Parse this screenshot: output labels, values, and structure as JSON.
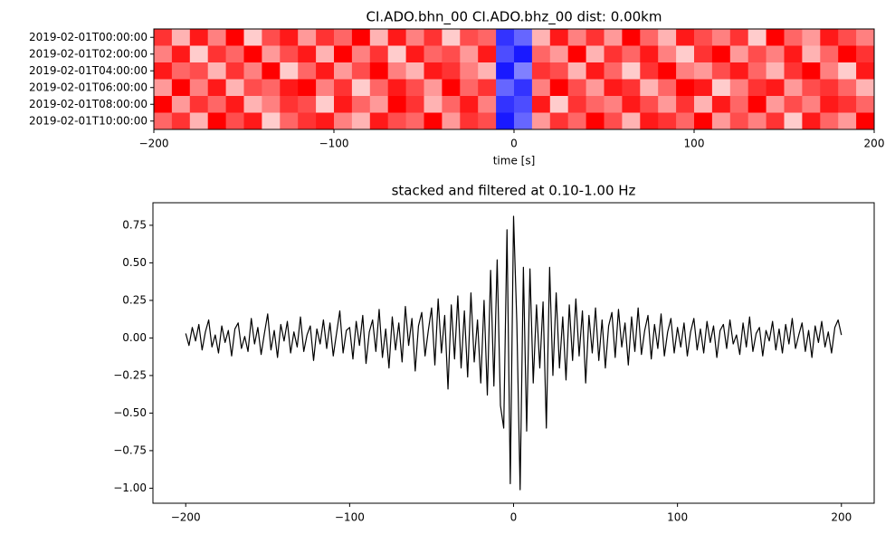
{
  "chart_data": [
    {
      "type": "heatmap",
      "title": "CI.ADO.bhn_00 CI.ADO.bhz_00  dist: 0.00km",
      "xlabel": "time [s]",
      "xlim": [
        -200,
        200
      ],
      "xticks": [
        {
          "value": -200,
          "label": "−200"
        },
        {
          "value": -100,
          "label": "−100"
        },
        0,
        100,
        200
      ],
      "rows": [
        "2019-02-01T00:00:00",
        "2019-02-01T02:00:00",
        "2019-02-01T04:00:00",
        "2019-02-01T06:00:00",
        "2019-02-01T08:00:00",
        "2019-02-01T10:00:00"
      ],
      "z": [
        [
          0.8,
          0.3,
          0.9,
          0.5,
          1,
          0.2,
          0.7,
          0.9,
          0.4,
          0.8,
          0.6,
          1,
          0.3,
          0.9,
          0.5,
          0.8,
          0.2,
          0.7,
          0.6,
          -0.8,
          -0.6,
          0.3,
          0.9,
          0.5,
          0.8,
          0.4,
          1,
          0.6,
          0.3,
          0.9,
          0.7,
          0.5,
          0.8,
          0.2,
          1,
          0.6,
          0.4,
          0.9,
          0.7,
          0.5
        ],
        [
          0.5,
          0.9,
          0.2,
          0.8,
          0.6,
          1,
          0.4,
          0.7,
          0.9,
          0.3,
          1,
          0.5,
          0.8,
          0.2,
          0.9,
          0.6,
          0.7,
          0.4,
          0.9,
          -0.7,
          -0.9,
          0.6,
          0.4,
          1,
          0.3,
          0.8,
          0.6,
          0.9,
          0.5,
          0.2,
          0.8,
          1,
          0.4,
          0.7,
          0.5,
          0.9,
          0.3,
          0.6,
          1,
          0.8
        ],
        [
          0.9,
          0.6,
          0.7,
          0.3,
          0.8,
          0.5,
          1,
          0.2,
          0.6,
          0.9,
          0.4,
          0.7,
          1,
          0.5,
          0.3,
          0.9,
          0.8,
          0.5,
          0.3,
          -0.9,
          -0.5,
          0.8,
          0.7,
          0.3,
          0.9,
          0.6,
          0.2,
          0.8,
          1,
          0.5,
          0.4,
          0.7,
          0.9,
          0.6,
          0.3,
          0.8,
          1,
          0.5,
          0.2,
          0.9
        ],
        [
          0.4,
          1,
          0.5,
          0.9,
          0.3,
          0.7,
          0.6,
          0.9,
          1,
          0.5,
          0.8,
          0.2,
          0.6,
          0.9,
          0.7,
          0.4,
          1,
          0.6,
          0.8,
          -0.6,
          -0.8,
          0.5,
          1,
          0.7,
          0.4,
          0.9,
          0.8,
          0.3,
          0.6,
          1,
          0.9,
          0.2,
          0.5,
          0.8,
          0.9,
          0.4,
          0.7,
          0.8,
          0.6,
          0.3
        ],
        [
          1,
          0.4,
          0.8,
          0.6,
          0.9,
          0.3,
          0.5,
          0.8,
          0.7,
          0.2,
          0.9,
          0.6,
          0.4,
          1,
          0.8,
          0.3,
          0.6,
          0.9,
          0.5,
          -0.8,
          -0.7,
          0.9,
          0.2,
          0.8,
          0.6,
          0.5,
          0.9,
          0.7,
          0.4,
          0.8,
          0.3,
          0.9,
          0.6,
          1,
          0.4,
          0.7,
          0.5,
          0.9,
          0.8,
          0.6
        ],
        [
          0.6,
          0.8,
          0.3,
          1,
          0.7,
          0.9,
          0.2,
          0.6,
          0.8,
          0.9,
          0.5,
          0.3,
          0.9,
          0.7,
          0.6,
          1,
          0.4,
          0.8,
          0.7,
          -0.9,
          -0.6,
          0.4,
          0.8,
          0.6,
          1,
          0.7,
          0.3,
          0.9,
          0.8,
          0.6,
          1,
          0.4,
          0.7,
          0.5,
          0.8,
          0.2,
          0.9,
          0.6,
          0.4,
          1
        ]
      ]
    },
    {
      "type": "line",
      "title": "stacked and filtered at 0.10-1.00 Hz",
      "xlim": [
        -220,
        220
      ],
      "ylim": [
        -1.1,
        0.9
      ],
      "xticks": [
        {
          "value": -200,
          "label": "−200"
        },
        {
          "value": -100,
          "label": "−100"
        },
        0,
        100,
        200
      ],
      "yticks": [
        0.75,
        {
          "value": 0.5,
          "label": "0.50"
        },
        0.25,
        {
          "value": 0,
          "label": "0.00"
        },
        {
          "value": -0.25,
          "label": "−0.25"
        },
        {
          "value": -0.5,
          "label": "−0.50"
        },
        {
          "value": -0.75,
          "label": "−0.75"
        },
        {
          "value": -1,
          "label": "−1.00"
        }
      ],
      "x": [
        -200,
        -198,
        -196,
        -194,
        -192,
        -190,
        -188,
        -186,
        -184,
        -182,
        -180,
        -178,
        -176,
        -174,
        -172,
        -170,
        -168,
        -166,
        -164,
        -162,
        -160,
        -158,
        -156,
        -154,
        -152,
        -150,
        -148,
        -146,
        -144,
        -142,
        -140,
        -138,
        -136,
        -134,
        -132,
        -130,
        -128,
        -126,
        -124,
        -122,
        -120,
        -118,
        -116,
        -114,
        -112,
        -110,
        -108,
        -106,
        -104,
        -102,
        -100,
        -98,
        -96,
        -94,
        -92,
        -90,
        -88,
        -86,
        -84,
        -82,
        -80,
        -78,
        -76,
        -74,
        -72,
        -70,
        -68,
        -66,
        -64,
        -62,
        -60,
        -58,
        -56,
        -54,
        -52,
        -50,
        -48,
        -46,
        -44,
        -42,
        -40,
        -38,
        -36,
        -34,
        -32,
        -30,
        -28,
        -26,
        -24,
        -22,
        -20,
        -18,
        -16,
        -14,
        -12,
        -10,
        -8,
        -6,
        -4,
        -2,
        0,
        2,
        4,
        6,
        8,
        10,
        12,
        14,
        16,
        18,
        20,
        22,
        24,
        26,
        28,
        30,
        32,
        34,
        36,
        38,
        40,
        42,
        44,
        46,
        48,
        50,
        52,
        54,
        56,
        58,
        60,
        62,
        64,
        66,
        68,
        70,
        72,
        74,
        76,
        78,
        80,
        82,
        84,
        86,
        88,
        90,
        92,
        94,
        96,
        98,
        100,
        102,
        104,
        106,
        108,
        110,
        112,
        114,
        116,
        118,
        120,
        122,
        124,
        126,
        128,
        130,
        132,
        134,
        136,
        138,
        140,
        142,
        144,
        146,
        148,
        150,
        152,
        154,
        156,
        158,
        160,
        162,
        164,
        166,
        168,
        170,
        172,
        174,
        176,
        178,
        180,
        182,
        184,
        186,
        188,
        190,
        192,
        194,
        196,
        198,
        200
      ],
      "series": [
        {
          "color": "#000000",
          "values": [
            0.03,
            -0.05,
            0.07,
            -0.02,
            0.09,
            -0.08,
            0.04,
            0.12,
            -0.06,
            0.02,
            -0.1,
            0.08,
            -0.03,
            0.05,
            -0.12,
            0.06,
            0.1,
            -0.07,
            0.01,
            -0.09,
            0.13,
            -0.04,
            0.07,
            -0.11,
            0.03,
            0.16,
            -0.08,
            0.05,
            -0.13,
            0.09,
            -0.02,
            0.11,
            -0.1,
            0.04,
            -0.06,
            0.14,
            -0.09,
            0.02,
            0.08,
            -0.15,
            0.06,
            -0.04,
            0.12,
            -0.07,
            0.1,
            -0.12,
            0.03,
            0.18,
            -0.1,
            0.05,
            0.07,
            -0.14,
            0.11,
            -0.05,
            0.15,
            -0.17,
            0.04,
            0.12,
            -0.09,
            0.19,
            -0.13,
            0.06,
            -0.2,
            0.14,
            -0.08,
            0.1,
            -0.16,
            0.21,
            -0.05,
            0.13,
            -0.22,
            0.08,
            0.17,
            -0.12,
            0.05,
            0.2,
            -0.18,
            0.26,
            -0.1,
            0.15,
            -0.34,
            0.22,
            -0.14,
            0.28,
            -0.2,
            0.18,
            -0.26,
            0.3,
            -0.16,
            0.12,
            -0.3,
            0.25,
            -0.38,
            0.45,
            -0.32,
            0.52,
            -0.45,
            -0.6,
            0.72,
            -0.97,
            0.81,
            0.1,
            -1.01,
            0.47,
            -0.62,
            0.46,
            -0.3,
            0.22,
            -0.2,
            0.24,
            -0.6,
            0.47,
            -0.25,
            0.3,
            -0.2,
            0.14,
            -0.28,
            0.22,
            -0.15,
            0.26,
            -0.12,
            0.18,
            -0.3,
            0.15,
            -0.1,
            0.2,
            -0.15,
            0.12,
            -0.2,
            0.08,
            0.17,
            -0.13,
            0.19,
            -0.06,
            0.1,
            -0.18,
            0.14,
            -0.09,
            0.2,
            -0.11,
            0.05,
            0.15,
            -0.14,
            0.09,
            -0.07,
            0.16,
            -0.12,
            0.04,
            0.13,
            -0.1,
            0.07,
            -0.06,
            0.1,
            -0.12,
            0.04,
            0.13,
            -0.08,
            0.06,
            -0.1,
            0.11,
            -0.03,
            0.08,
            -0.13,
            0.05,
            0.09,
            -0.07,
            0.12,
            -0.04,
            0.02,
            -0.11,
            0.1,
            -0.06,
            0.14,
            -0.09,
            0.03,
            0.07,
            -0.12,
            0.05,
            -0.02,
            0.11,
            -0.08,
            0.06,
            -0.1,
            0.09,
            -0.04,
            0.13,
            -0.07,
            0.02,
            0.1,
            -0.09,
            0.05,
            -0.13,
            0.08,
            -0.03,
            0.11,
            -0.06,
            0.04,
            -0.1,
            0.07,
            0.12,
            0.02
          ]
        }
      ]
    }
  ]
}
